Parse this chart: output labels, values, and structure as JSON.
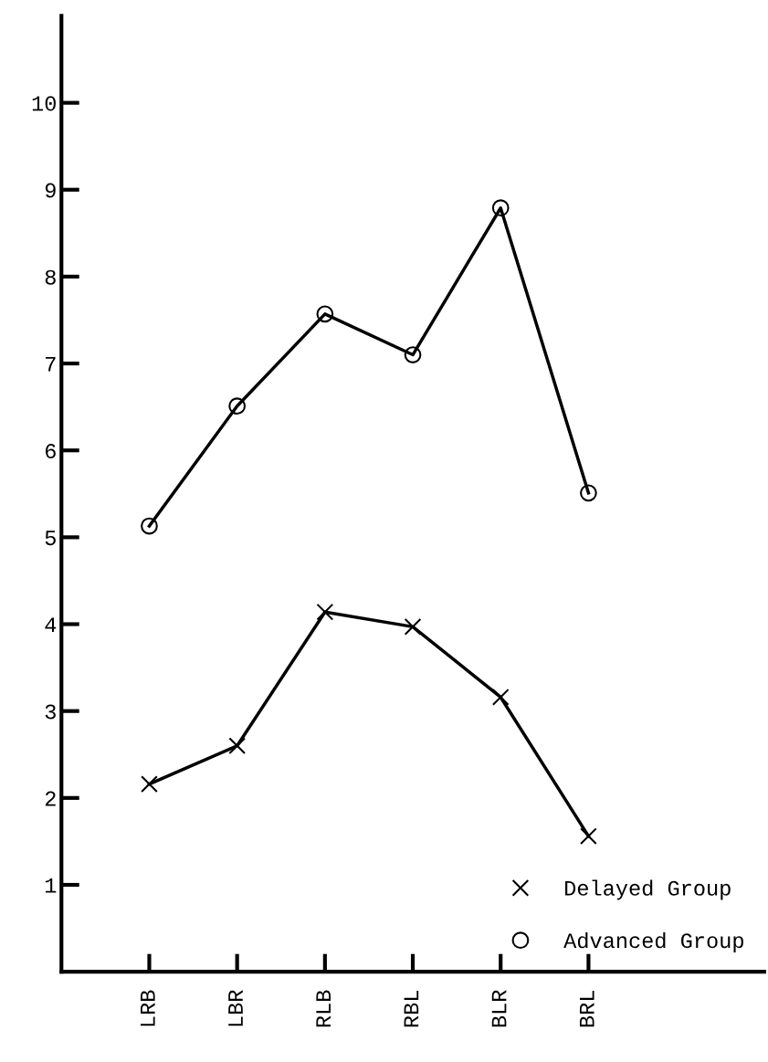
{
  "chart_data": {
    "type": "line",
    "categories": [
      "LRB",
      "LBR",
      "RLB",
      "RBL",
      "BLR",
      "BRL"
    ],
    "series": [
      {
        "name": "Delayed Group",
        "color": "#000000",
        "marker": "cross",
        "values": [
          2.16,
          2.6,
          4.14,
          3.97,
          3.16,
          1.56
        ]
      },
      {
        "name": "Advanced Group",
        "color": "#000000",
        "marker": "circle",
        "values": [
          5.13,
          6.51,
          7.57,
          7.1,
          8.79,
          5.51
        ]
      }
    ],
    "ylim": [
      0,
      11
    ],
    "yticks": [
      1,
      2,
      3,
      4,
      5,
      6,
      7,
      8,
      9,
      10
    ],
    "grid": false,
    "legend": "bottom right",
    "line_style": "solid"
  }
}
